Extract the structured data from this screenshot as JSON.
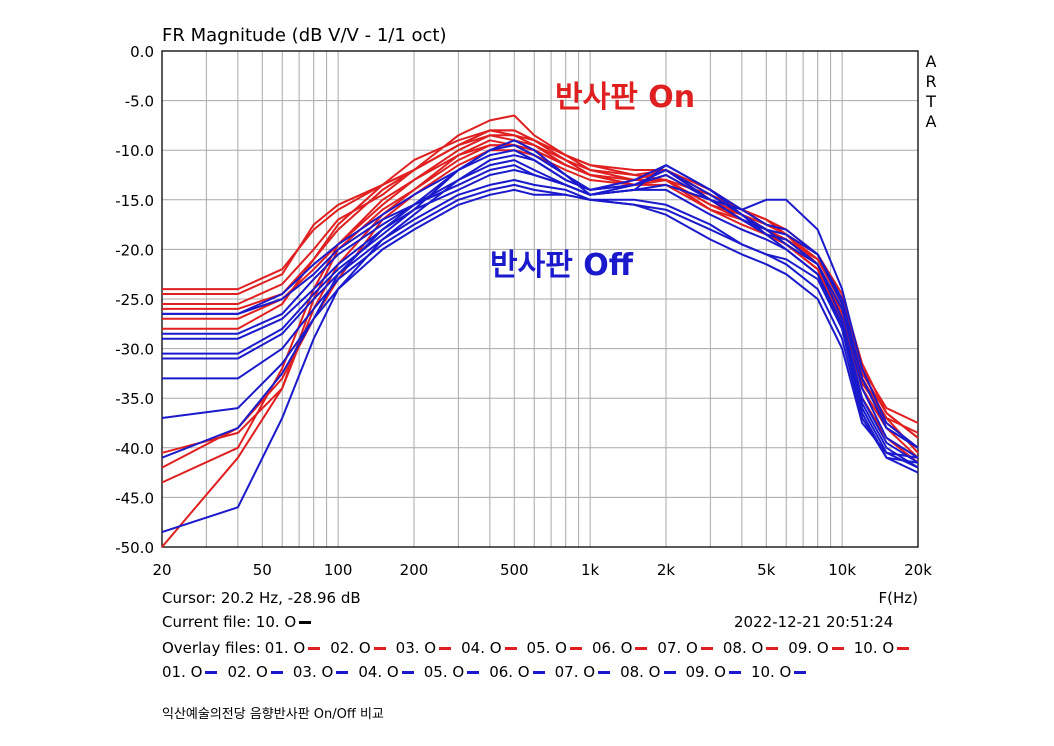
{
  "chart_data": {
    "type": "line",
    "title": "FR Magnitude (dB V/V - 1/1 oct)",
    "xlabel": "F(Hz)",
    "x_scale": "log",
    "xlim": [
      20,
      20000
    ],
    "ylim": [
      -50,
      0
    ],
    "grid": true,
    "x_ticks": [
      20,
      50,
      100,
      200,
      500,
      1000,
      2000,
      5000,
      10000,
      20000
    ],
    "x_tick_labels": [
      "20",
      "50",
      "100",
      "200",
      "500",
      "1k",
      "2k",
      "5k",
      "10k",
      "20k"
    ],
    "y_ticks": [
      0,
      -5,
      -10,
      -15,
      -20,
      -25,
      -30,
      -35,
      -40,
      -45,
      -50
    ],
    "y_tick_labels": [
      "0.0",
      "-5.0",
      "-10.0",
      "-15.0",
      "-20.0",
      "-25.0",
      "-30.0",
      "-35.0",
      "-40.0",
      "-45.0",
      "-50.0"
    ],
    "annotations": [
      {
        "text": "반사판 On",
        "color": "#e02020"
      },
      {
        "text": "반사판 Off",
        "color": "#1a1acc"
      }
    ],
    "x": [
      20,
      40,
      60,
      80,
      100,
      150,
      200,
      300,
      400,
      500,
      600,
      800,
      1000,
      1500,
      2000,
      3000,
      4000,
      5000,
      6000,
      8000,
      10000,
      12000,
      15000,
      20000
    ],
    "series": [
      {
        "color": "#e02020",
        "values": [
          -24.5,
          -24.5,
          -22.5,
          -17.5,
          -15.5,
          -13.5,
          -12.0,
          -9.5,
          -8.0,
          -8.5,
          -9.5,
          -11.0,
          -12.0,
          -13.0,
          -13.0,
          -15.5,
          -16.5,
          -18.0,
          -19.0,
          -21.0,
          -25.5,
          -33.0,
          -37.0,
          -38.5
        ]
      },
      {
        "color": "#e02020",
        "values": [
          -25.5,
          -25.5,
          -23.5,
          -20.0,
          -17.0,
          -14.5,
          -12.0,
          -8.5,
          -7.0,
          -6.5,
          -8.5,
          -10.5,
          -12.0,
          -12.5,
          -13.0,
          -14.5,
          -16.0,
          -17.5,
          -18.5,
          -20.5,
          -24.5,
          -31.5,
          -36.5,
          -39.0
        ]
      },
      {
        "color": "#e02020",
        "values": [
          -26.0,
          -26.0,
          -24.5,
          -21.0,
          -17.5,
          -13.5,
          -11.0,
          -9.0,
          -8.0,
          -8.0,
          -9.0,
          -10.5,
          -11.5,
          -12.5,
          -12.0,
          -15.0,
          -16.5,
          -18.0,
          -19.0,
          -21.5,
          -26.5,
          -34.0,
          -38.0,
          -40.0
        ]
      },
      {
        "color": "#e02020",
        "values": [
          -27.0,
          -27.0,
          -25.0,
          -22.0,
          -19.5,
          -15.5,
          -13.0,
          -10.0,
          -8.5,
          -9.0,
          -9.5,
          -11.5,
          -12.5,
          -13.5,
          -12.5,
          -15.0,
          -17.0,
          -18.0,
          -19.5,
          -22.0,
          -27.5,
          -35.0,
          -39.0,
          -41.0
        ]
      },
      {
        "color": "#e02020",
        "values": [
          -28.0,
          -28.0,
          -25.5,
          -21.0,
          -18.0,
          -14.0,
          -12.0,
          -9.5,
          -8.5,
          -8.5,
          -9.0,
          -11.0,
          -12.5,
          -13.0,
          -12.0,
          -14.5,
          -16.0,
          -17.0,
          -18.5,
          -21.5,
          -26.0,
          -33.5,
          -37.0,
          -40.5
        ]
      },
      {
        "color": "#e02020",
        "values": [
          -40.5,
          -38.5,
          -34.0,
          -26.0,
          -21.5,
          -16.5,
          -14.0,
          -10.5,
          -9.5,
          -9.5,
          -10.0,
          -11.5,
          -12.5,
          -13.5,
          -13.5,
          -16.0,
          -17.5,
          -18.5,
          -19.5,
          -22.0,
          -27.0,
          -34.0,
          -38.0,
          -41.0
        ]
      },
      {
        "color": "#e02020",
        "values": [
          -42.0,
          -38.0,
          -33.0,
          -27.0,
          -23.0,
          -17.0,
          -14.5,
          -11.5,
          -10.0,
          -10.0,
          -10.5,
          -12.0,
          -13.0,
          -13.5,
          -13.0,
          -16.0,
          -17.0,
          -18.5,
          -19.5,
          -22.0,
          -27.5,
          -35.0,
          -39.0,
          -41.5
        ]
      },
      {
        "color": "#e02020",
        "values": [
          -43.5,
          -40.0,
          -32.0,
          -24.0,
          -19.5,
          -15.0,
          -13.0,
          -10.5,
          -9.0,
          -9.5,
          -10.0,
          -11.5,
          -12.5,
          -13.0,
          -12.0,
          -14.0,
          -16.0,
          -17.0,
          -18.0,
          -20.5,
          -25.0,
          -32.5,
          -36.5,
          -39.0
        ]
      },
      {
        "color": "#e02020",
        "values": [
          -50.0,
          -41.0,
          -34.0,
          -25.0,
          -20.0,
          -16.0,
          -14.0,
          -11.0,
          -9.5,
          -9.5,
          -10.0,
          -11.5,
          -12.5,
          -13.5,
          -13.0,
          -15.5,
          -17.0,
          -18.5,
          -19.0,
          -21.0,
          -25.5,
          -33.0,
          -37.5,
          -40.0
        ]
      },
      {
        "color": "#e02020",
        "values": [
          -24.0,
          -24.0,
          -22.0,
          -18.0,
          -16.0,
          -13.5,
          -12.0,
          -9.5,
          -8.0,
          -8.0,
          -9.0,
          -10.5,
          -11.5,
          -12.0,
          -12.0,
          -14.5,
          -16.5,
          -17.5,
          -18.5,
          -21.0,
          -25.0,
          -32.0,
          -36.0,
          -37.5
        ]
      },
      {
        "color": "#1a1acc",
        "values": [
          -26.5,
          -26.5,
          -25.0,
          -22.5,
          -20.0,
          -17.0,
          -15.5,
          -13.5,
          -12.0,
          -11.5,
          -12.5,
          -13.5,
          -14.5,
          -14.0,
          -13.5,
          -15.0,
          -16.0,
          -15.0,
          -15.0,
          -18.0,
          -24.0,
          -32.0,
          -37.5,
          -40.0
        ]
      },
      {
        "color": "#1a1acc",
        "values": [
          -28.5,
          -28.5,
          -26.5,
          -23.0,
          -20.5,
          -17.5,
          -15.5,
          -13.0,
          -11.5,
          -11.0,
          -12.0,
          -13.5,
          -14.5,
          -13.5,
          -12.0,
          -14.5,
          -16.5,
          -18.0,
          -19.5,
          -21.5,
          -26.0,
          -34.0,
          -39.0,
          -41.0
        ]
      },
      {
        "color": "#1a1acc",
        "values": [
          -29.0,
          -29.0,
          -27.0,
          -24.0,
          -21.5,
          -18.0,
          -16.0,
          -14.0,
          -12.5,
          -12.0,
          -12.5,
          -13.5,
          -14.5,
          -14.0,
          -14.0,
          -16.5,
          -18.0,
          -19.0,
          -20.0,
          -22.5,
          -27.5,
          -35.5,
          -40.0,
          -42.0
        ]
      },
      {
        "color": "#1a1acc",
        "values": [
          -30.5,
          -30.5,
          -28.0,
          -24.5,
          -22.0,
          -18.5,
          -16.0,
          -12.0,
          -10.0,
          -9.5,
          -10.5,
          -12.5,
          -14.5,
          -14.0,
          -11.5,
          -14.0,
          -16.5,
          -18.5,
          -20.0,
          -22.5,
          -28.0,
          -36.5,
          -41.0,
          -42.5
        ]
      },
      {
        "color": "#1a1acc",
        "values": [
          -31.0,
          -31.0,
          -28.5,
          -25.0,
          -22.5,
          -19.0,
          -17.0,
          -14.5,
          -13.5,
          -13.0,
          -13.5,
          -14.0,
          -15.0,
          -15.0,
          -15.5,
          -17.5,
          -19.5,
          -20.5,
          -21.0,
          -23.0,
          -28.0,
          -36.0,
          -40.5,
          -42.0
        ]
      },
      {
        "color": "#1a1acc",
        "values": [
          -33.0,
          -33.0,
          -30.0,
          -26.0,
          -23.0,
          -19.5,
          -17.5,
          -15.0,
          -14.0,
          -13.5,
          -14.0,
          -14.5,
          -15.0,
          -15.5,
          -16.0,
          -18.0,
          -19.5,
          -20.5,
          -21.5,
          -24.0,
          -29.0,
          -37.0,
          -41.0,
          -41.5
        ]
      },
      {
        "color": "#1a1acc",
        "values": [
          -37.0,
          -36.0,
          -31.5,
          -27.0,
          -24.0,
          -20.0,
          -18.0,
          -15.5,
          -14.5,
          -14.0,
          -14.5,
          -14.5,
          -15.0,
          -15.5,
          -16.5,
          -19.0,
          -20.5,
          -21.5,
          -22.5,
          -25.0,
          -30.0,
          -37.5,
          -40.5,
          -41.0
        ]
      },
      {
        "color": "#1a1acc",
        "values": [
          -48.5,
          -46.0,
          -37.0,
          -29.0,
          -24.0,
          -19.0,
          -16.5,
          -13.0,
          -11.0,
          -10.5,
          -11.0,
          -13.0,
          -14.0,
          -13.5,
          -12.0,
          -15.0,
          -17.0,
          -18.5,
          -19.0,
          -21.5,
          -27.0,
          -35.0,
          -39.5,
          -41.5
        ]
      },
      {
        "color": "#1a1acc",
        "values": [
          -41.0,
          -38.0,
          -32.5,
          -27.0,
          -22.5,
          -18.0,
          -15.5,
          -12.0,
          -10.0,
          -9.0,
          -10.0,
          -12.5,
          -14.0,
          -13.0,
          -11.5,
          -14.0,
          -16.0,
          -17.5,
          -18.0,
          -20.5,
          -25.5,
          -33.0,
          -38.0,
          -40.0
        ]
      },
      {
        "color": "#1a1acc",
        "values": [
          -26.5,
          -26.5,
          -24.5,
          -21.5,
          -19.5,
          -16.5,
          -14.5,
          -12.0,
          -10.5,
          -10.0,
          -11.0,
          -13.0,
          -14.0,
          -13.5,
          -12.5,
          -15.0,
          -17.0,
          -18.0,
          -18.5,
          -20.5,
          -25.0,
          -33.0,
          -38.0,
          -40.0
        ]
      }
    ]
  },
  "vendor_letters": [
    "A",
    "R",
    "T",
    "A"
  ],
  "info": {
    "cursor": "Cursor: 20.2 Hz, -28.96 dB",
    "current_file_label": "Current file: 10. O",
    "current_file_color": "#000000",
    "datetime": "2022-12-21   20:51:24",
    "overlay_label": "Overlay files:",
    "overlay_files": [
      {
        "label": "01. O",
        "color": "#e02020"
      },
      {
        "label": "02. O",
        "color": "#e02020"
      },
      {
        "label": "03. O",
        "color": "#e02020"
      },
      {
        "label": "04. O",
        "color": "#e02020"
      },
      {
        "label": "05. O",
        "color": "#e02020"
      },
      {
        "label": "06. O",
        "color": "#e02020"
      },
      {
        "label": "07. O",
        "color": "#e02020"
      },
      {
        "label": "08. O",
        "color": "#e02020"
      },
      {
        "label": "09. O",
        "color": "#e02020"
      },
      {
        "label": "10. O",
        "color": "#e02020"
      },
      {
        "label": "01. O",
        "color": "#1a1acc"
      },
      {
        "label": "02. O",
        "color": "#1a1acc"
      },
      {
        "label": "03. O",
        "color": "#1a1acc"
      },
      {
        "label": "04. O",
        "color": "#1a1acc"
      },
      {
        "label": "05. O",
        "color": "#1a1acc"
      },
      {
        "label": "06. O",
        "color": "#1a1acc"
      },
      {
        "label": "07. O",
        "color": "#1a1acc"
      },
      {
        "label": "08. O",
        "color": "#1a1acc"
      },
      {
        "label": "09. O",
        "color": "#1a1acc"
      },
      {
        "label": "10. O",
        "color": "#1a1acc"
      }
    ],
    "caption": "익산예술의전당 음향반사판 On/Off 비교"
  }
}
